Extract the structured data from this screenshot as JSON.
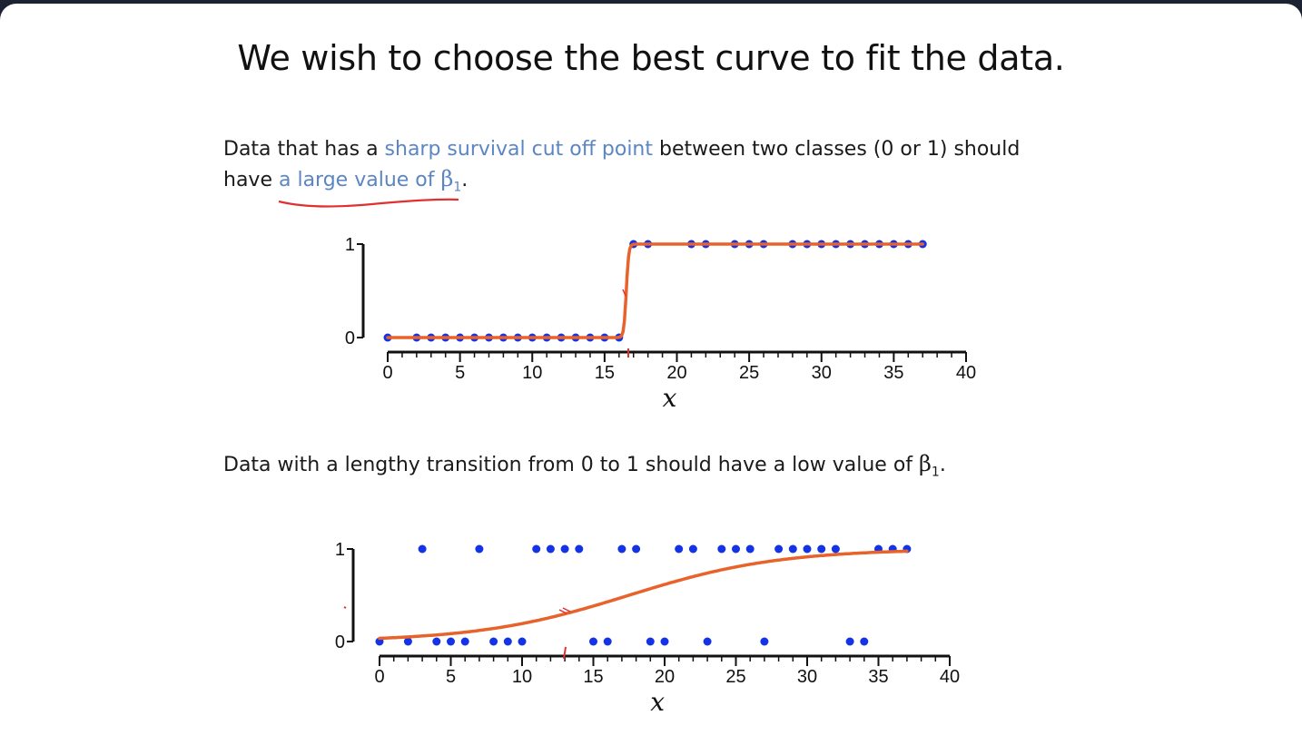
{
  "slide": {
    "title": "We wish to choose the best curve to fit the data.",
    "para1": {
      "part1": "Data that has a ",
      "highlight1": "sharp survival cut off point",
      "part2": " between two classes (0 or 1) should",
      "line2_prefix": "have ",
      "highlight2": "a large value of ",
      "beta": "β",
      "sub": "1",
      "end": "."
    },
    "para2": {
      "text": "Data with a lengthy transition from 0 to 1 should have a low value of ",
      "beta": "β",
      "sub": "1",
      "end": "."
    }
  },
  "chart_data": [
    {
      "type": "scatter",
      "xlabel": "x",
      "xlim": [
        0,
        40
      ],
      "ylim": [
        0,
        1
      ],
      "xticks": [
        0,
        5,
        10,
        15,
        20,
        25,
        30,
        35,
        40
      ],
      "yticks": [
        0,
        1
      ],
      "points_y0": [
        0,
        2,
        3,
        4,
        5,
        6,
        7,
        8,
        9,
        10,
        11,
        12,
        13,
        14,
        15,
        16
      ],
      "points_y1": [
        17,
        18,
        21,
        22,
        24,
        25,
        26,
        28,
        29,
        30,
        31,
        32,
        33,
        34,
        35,
        36,
        37
      ],
      "curve": {
        "type": "logistic",
        "midpoint": 16.5,
        "slope": 12,
        "color": "#e8622c"
      },
      "point_color": "#1432e6"
    },
    {
      "type": "scatter",
      "xlabel": "x",
      "xlim": [
        0,
        40
      ],
      "ylim": [
        0,
        1
      ],
      "xticks": [
        0,
        5,
        10,
        15,
        20,
        25,
        30,
        35,
        40
      ],
      "yticks": [
        0,
        1
      ],
      "points_y0": [
        0,
        2,
        4,
        5,
        6,
        8,
        9,
        10,
        15,
        16,
        19,
        20,
        23,
        27,
        33,
        34
      ],
      "points_y1": [
        3,
        7,
        11,
        12,
        13,
        14,
        17,
        18,
        21,
        22,
        24,
        25,
        26,
        28,
        29,
        30,
        31,
        32,
        35,
        36,
        37
      ],
      "curve": {
        "type": "logistic",
        "midpoint": 17.5,
        "slope": 0.19,
        "color": "#e8622c"
      },
      "point_color": "#1432e6"
    }
  ]
}
